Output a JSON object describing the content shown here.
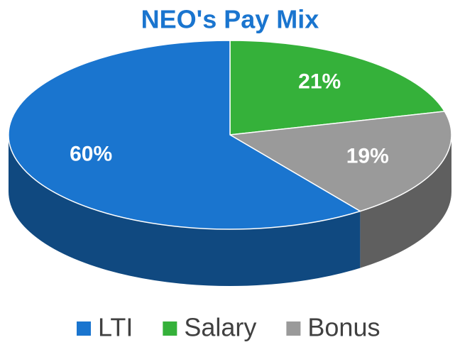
{
  "chart_data": {
    "type": "pie",
    "title": "NEO's Pay Mix",
    "categories": [
      "LTI",
      "Salary",
      "Bonus"
    ],
    "values": [
      60,
      21,
      19
    ],
    "value_labels": [
      "60%",
      "21%",
      "19%"
    ],
    "colors": [
      "#1a75cf",
      "#35b13a",
      "#9a9a9a"
    ]
  }
}
